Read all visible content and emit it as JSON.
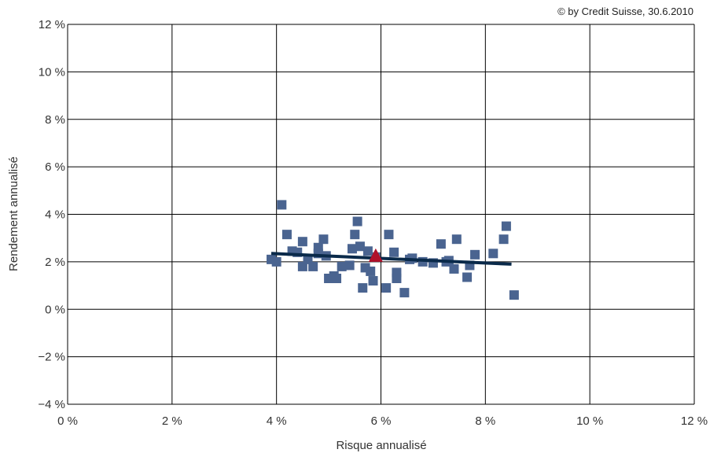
{
  "copyright": "© by Credit Suisse, 30.6.2010",
  "colors": {
    "points": "#4a6490",
    "trend": "#0a2a4a",
    "highlight": "#b0102a",
    "grid": "#000000"
  },
  "chart_data": {
    "type": "scatter",
    "xlabel": "Risque annualisé",
    "ylabel": "Rendement annualisé",
    "xlim": [
      0,
      12
    ],
    "ylim": [
      -4,
      12
    ],
    "x_ticks": [
      0,
      2,
      4,
      6,
      8,
      10,
      12
    ],
    "y_ticks": [
      -4,
      -2,
      0,
      2,
      4,
      6,
      8,
      10,
      12
    ],
    "x_tick_labels": [
      "0 %",
      "2 %",
      "4 %",
      "6 %",
      "8 %",
      "10 %",
      "12 %"
    ],
    "y_tick_labels": [
      "−4 %",
      "−2 %",
      "0 %",
      "2 %",
      "4 %",
      "6 %",
      "8 %",
      "10 %",
      "12 %"
    ],
    "grid": true,
    "series": [
      {
        "marker": "square",
        "points": [
          [
            4.1,
            4.4
          ],
          [
            3.9,
            2.1
          ],
          [
            4.0,
            2.0
          ],
          [
            4.2,
            3.15
          ],
          [
            4.3,
            2.45
          ],
          [
            4.4,
            2.4
          ],
          [
            4.5,
            2.85
          ],
          [
            4.5,
            1.8
          ],
          [
            4.6,
            2.1
          ],
          [
            4.7,
            1.8
          ],
          [
            4.8,
            2.6
          ],
          [
            4.8,
            2.35
          ],
          [
            4.9,
            2.95
          ],
          [
            4.95,
            2.25
          ],
          [
            5.0,
            1.3
          ],
          [
            5.1,
            1.4
          ],
          [
            5.15,
            1.3
          ],
          [
            5.25,
            1.8
          ],
          [
            5.4,
            1.85
          ],
          [
            5.45,
            2.55
          ],
          [
            5.5,
            3.15
          ],
          [
            5.55,
            3.7
          ],
          [
            5.6,
            2.65
          ],
          [
            5.65,
            0.9
          ],
          [
            5.7,
            1.75
          ],
          [
            5.75,
            2.45
          ],
          [
            5.8,
            1.6
          ],
          [
            5.85,
            1.2
          ],
          [
            5.9,
            2.2
          ],
          [
            6.1,
            0.9
          ],
          [
            6.15,
            3.15
          ],
          [
            6.25,
            2.4
          ],
          [
            6.3,
            1.55
          ],
          [
            6.3,
            1.3
          ],
          [
            6.45,
            0.7
          ],
          [
            6.55,
            2.1
          ],
          [
            6.6,
            2.15
          ],
          [
            6.8,
            2.0
          ],
          [
            7.0,
            1.95
          ],
          [
            7.15,
            2.75
          ],
          [
            7.25,
            2.0
          ],
          [
            7.3,
            2.05
          ],
          [
            7.4,
            1.7
          ],
          [
            7.45,
            2.95
          ],
          [
            7.65,
            1.35
          ],
          [
            7.7,
            1.85
          ],
          [
            7.8,
            2.3
          ],
          [
            8.15,
            2.35
          ],
          [
            8.35,
            2.95
          ],
          [
            8.4,
            3.5
          ],
          [
            8.55,
            0.6
          ]
        ]
      },
      {
        "marker": "line",
        "points": [
          [
            3.9,
            2.35
          ],
          [
            8.5,
            1.9
          ]
        ]
      },
      {
        "marker": "triangle",
        "points": [
          [
            5.9,
            2.2
          ]
        ]
      }
    ]
  }
}
